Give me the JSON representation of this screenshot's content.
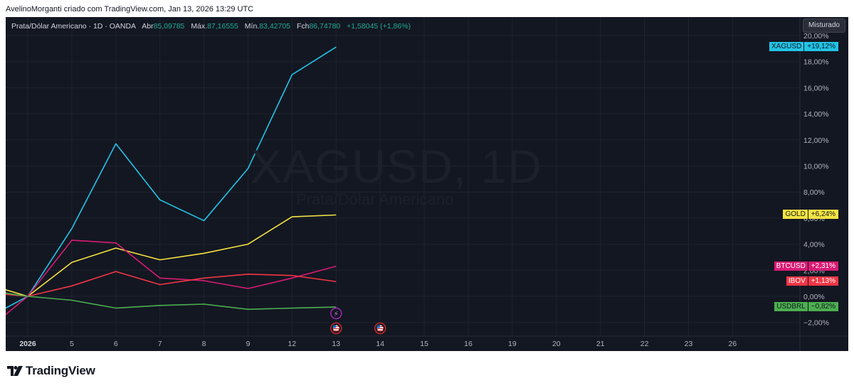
{
  "header": {
    "caption": "AvelinoMorganti criado com TradingView.com, Jan 13, 2026 13:29 UTC"
  },
  "legend": {
    "symbol": "Prata/Dólar Americano · 1D · OANDA",
    "open_label": "Abr",
    "open_value": "85,09785",
    "high_label": "Máx.",
    "high_value": "87,16555",
    "low_label": "Mín.",
    "low_value": "83,42705",
    "close_label": "Fch",
    "close_value": "86,74780",
    "change": "+1,58045 (+1,86%)"
  },
  "mode_button": "Misturado",
  "watermark": {
    "main": "XAGUSD, 1D",
    "sub": "Prata/Dólar Americano"
  },
  "brand": {
    "logo_text": "TradingView"
  },
  "colors": {
    "background": "#131722",
    "grid": "#1f232e",
    "text": "#b2b5be"
  },
  "chart_data": {
    "type": "line",
    "x": [
      "2026",
      "5",
      "6",
      "7",
      "8",
      "9",
      "12",
      "13"
    ],
    "x_axis_labels": [
      "2026",
      "5",
      "6",
      "7",
      "8",
      "9",
      "12",
      "13",
      "14",
      "15",
      "16",
      "19",
      "20",
      "21",
      "22",
      "23",
      "26"
    ],
    "ylim": [
      -3.5,
      20.5
    ],
    "y_ticks": [
      "−2,00%",
      "0,00%",
      "2,00%",
      "4,00%",
      "6,00%",
      "8,00%",
      "10,00%",
      "12,00%",
      "14,00%",
      "16,00%",
      "18,00%",
      "20,00%"
    ],
    "series": [
      {
        "name": "XAGUSD",
        "color": "#22c4e6",
        "label": "+19,12%",
        "values": [
          0,
          5.2,
          11.7,
          7.4,
          5.8,
          9.8,
          17.0,
          19.12
        ]
      },
      {
        "name": "GOLD",
        "color": "#f5e342",
        "label": "+6,24%",
        "values": [
          0,
          2.6,
          3.7,
          2.8,
          3.3,
          4.0,
          6.1,
          6.24
        ]
      },
      {
        "name": "BTCUSD",
        "color": "#d81b74",
        "label": "+2,31%",
        "values": [
          0,
          4.3,
          4.1,
          1.4,
          1.2,
          0.6,
          1.4,
          2.31
        ]
      },
      {
        "name": "IBOV",
        "color": "#f23645",
        "label": "+1,13%",
        "values": [
          0,
          0.8,
          1.9,
          0.9,
          1.4,
          1.7,
          1.6,
          1.13
        ]
      },
      {
        "name": "USDBRL",
        "color": "#4caf50",
        "label": "−0,82%",
        "values": [
          0,
          -0.3,
          -0.9,
          -0.7,
          -0.6,
          -1.0,
          -0.9,
          -0.82
        ]
      }
    ],
    "events": [
      {
        "kind": "dividend",
        "x": "13",
        "symbol": "⚡",
        "color": "#9c27b0"
      },
      {
        "kind": "us-economic-event",
        "x": "13",
        "symbol": "🇺🇸",
        "color": "#c62828"
      },
      {
        "kind": "us-economic-event",
        "x": "14",
        "symbol": "🇺🇸",
        "color": "#c62828"
      }
    ]
  }
}
